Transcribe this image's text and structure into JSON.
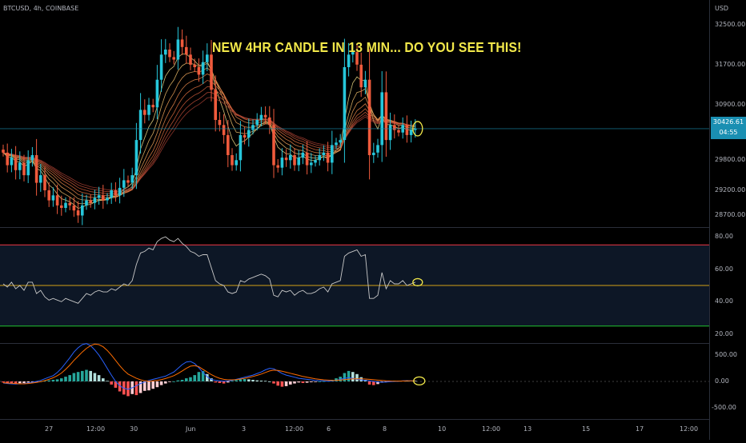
{
  "symbol": {
    "pair": "BTCUSD",
    "interval": "4h",
    "exchange": "COINBASE"
  },
  "annotation": "NEW 4HR CANDLE IN 13 MIN... DO YOU SEE THIS!",
  "currency": "USD",
  "price_tag": {
    "price": "30426.61",
    "countdown": "04:55"
  },
  "colors": {
    "up": "#26c6da",
    "down": "#ef5a3c",
    "annotation": "#f2e84a",
    "rsi_line": "#c8c8c8",
    "overbought": "#f23645",
    "oversold": "#22c32e",
    "midline": "#d4a017"
  },
  "price_axis": [
    "32500.00",
    "31700.00",
    "30900.00",
    "29800.00",
    "29200.00",
    "28700.00"
  ],
  "rsi_axis": [
    "80.00",
    "60.00",
    "40.00",
    "20.00"
  ],
  "macd_axis": [
    "500.00",
    "0.00",
    "-500.00"
  ],
  "time_axis": [
    "27",
    "12:00",
    "30",
    "Jun",
    "3",
    "12:00",
    "6",
    "8",
    "10",
    "12:00",
    "13",
    "15",
    "17",
    "12:00"
  ],
  "chart_data": [
    {
      "type": "candlestick",
      "title": "BTCUSD, 4h, COINBASE",
      "ylabel": "USD",
      "ylim": [
        28500,
        32700
      ],
      "x_ticks": [
        "27",
        "12:00",
        "30",
        "Jun",
        "3",
        "12:00",
        "6",
        "8",
        "10",
        "12:00",
        "13",
        "15",
        "17",
        "12:00"
      ],
      "close": [
        29950,
        29700,
        29850,
        29600,
        29750,
        29500,
        29800,
        29900,
        29350,
        29500,
        29200,
        29000,
        29100,
        28900,
        28850,
        28950,
        28900,
        28800,
        28700,
        28900,
        29000,
        28950,
        29050,
        29100,
        29000,
        29050,
        29200,
        29100,
        29250,
        29400,
        29350,
        29500,
        30200,
        30800,
        30700,
        30900,
        30850,
        31400,
        31900,
        32000,
        31850,
        31800,
        32200,
        32050,
        31900,
        31700,
        31650,
        31500,
        31750,
        31900,
        31200,
        30600,
        30500,
        30300,
        29900,
        29700,
        29800,
        30300,
        30250,
        30400,
        30500,
        30600,
        30700,
        30650,
        30500,
        29700,
        29650,
        29850,
        29800,
        29900,
        29700,
        29850,
        29950,
        29700,
        29750,
        29800,
        29900,
        29950,
        29750,
        30100,
        30150,
        30200,
        31650,
        31900,
        31950,
        31700,
        31250,
        31400,
        29900,
        29950,
        30100,
        31150,
        30200,
        30500,
        30400,
        30350,
        30500,
        30300,
        30400,
        30426
      ],
      "rsi": {
        "ylim": [
          15,
          85
        ],
        "levels": [
          75,
          50,
          25
        ],
        "values": [
          51,
          49,
          52,
          48,
          50,
          47,
          52,
          52,
          45,
          47,
          43,
          41,
          42,
          41,
          40,
          42,
          41,
          40,
          39,
          42,
          45,
          44,
          46,
          47,
          46,
          46,
          48,
          47,
          49,
          51,
          50,
          53,
          63,
          70,
          71,
          73,
          72,
          77,
          79,
          80,
          78,
          77,
          79,
          76,
          74,
          71,
          70,
          68,
          69,
          69,
          61,
          53,
          51,
          50,
          46,
          45,
          46,
          53,
          52,
          54,
          55,
          56,
          57,
          56,
          54,
          44,
          43,
          47,
          46,
          47,
          44,
          46,
          47,
          45,
          45,
          46,
          48,
          49,
          46,
          51,
          52,
          53,
          68,
          70,
          71,
          72,
          68,
          69,
          42,
          42,
          44,
          58,
          48,
          53,
          51,
          51,
          53,
          50,
          51,
          52
        ]
      },
      "macd": {
        "ylim": [
          -700,
          700
        ],
        "histogram": [
          -20,
          -25,
          -30,
          -40,
          -35,
          -30,
          -20,
          -15,
          -10,
          0,
          10,
          20,
          30,
          40,
          60,
          90,
          120,
          160,
          180,
          200,
          220,
          200,
          160,
          120,
          60,
          10,
          -60,
          -120,
          -190,
          -250,
          -280,
          -240,
          -260,
          -220,
          -180,
          -170,
          -140,
          -110,
          -70,
          -40,
          -10,
          0,
          20,
          30,
          60,
          80,
          120,
          180,
          200,
          140,
          60,
          -20,
          -30,
          -40,
          -20,
          10,
          25,
          40,
          45,
          40,
          30,
          20,
          15,
          10,
          0,
          -40,
          -80,
          -100,
          -90,
          -60,
          -40,
          -20,
          -30,
          -25,
          -15,
          -10,
          0,
          5,
          10,
          30,
          60,
          90,
          160,
          200,
          180,
          140,
          80,
          30,
          -60,
          -70,
          -50,
          -20,
          -10,
          10,
          15,
          10,
          15,
          10,
          12,
          10
        ],
        "macd": [
          -30,
          -40,
          -45,
          -50,
          -45,
          -40,
          -30,
          -15,
          0,
          20,
          50,
          80,
          110,
          170,
          250,
          350,
          450,
          560,
          640,
          700,
          720,
          680,
          600,
          500,
          380,
          250,
          120,
          0,
          -80,
          -130,
          -150,
          -120,
          -80,
          -40,
          -10,
          20,
          40,
          60,
          80,
          100,
          140,
          180,
          250,
          320,
          370,
          380,
          340,
          260,
          170,
          90,
          40,
          20,
          10,
          5,
          10,
          20,
          40,
          60,
          80,
          100,
          120,
          150,
          180,
          220,
          250,
          240,
          200,
          150,
          120,
          100,
          80,
          60,
          50,
          40,
          30,
          20,
          15,
          10,
          5,
          10,
          20,
          40,
          60,
          70,
          60,
          40,
          30,
          20,
          10,
          0,
          -10,
          -15,
          -10,
          -5,
          0,
          5,
          10,
          15,
          12,
          10
        ],
        "signal": [
          -25,
          -30,
          -35,
          -40,
          -45,
          -45,
          -40,
          -30,
          -20,
          -5,
          15,
          40,
          70,
          110,
          160,
          230,
          310,
          400,
          480,
          560,
          630,
          680,
          710,
          700,
          660,
          590,
          500,
          400,
          300,
          210,
          140,
          100,
          60,
          30,
          10,
          5,
          10,
          20,
          35,
          55,
          80,
          110,
          150,
          200,
          250,
          290,
          300,
          280,
          230,
          180,
          130,
          90,
          60,
          40,
          30,
          30,
          35,
          45,
          60,
          75,
          95,
          115,
          140,
          170,
          200,
          215,
          210,
          195,
          175,
          155,
          135,
          115,
          95,
          80,
          65,
          50,
          40,
          30,
          25,
          20,
          22,
          28,
          35,
          42,
          48,
          50,
          50,
          45,
          40,
          32,
          25,
          18,
          12,
          8,
          6,
          6,
          8,
          10,
          11,
          10
        ]
      }
    }
  ]
}
